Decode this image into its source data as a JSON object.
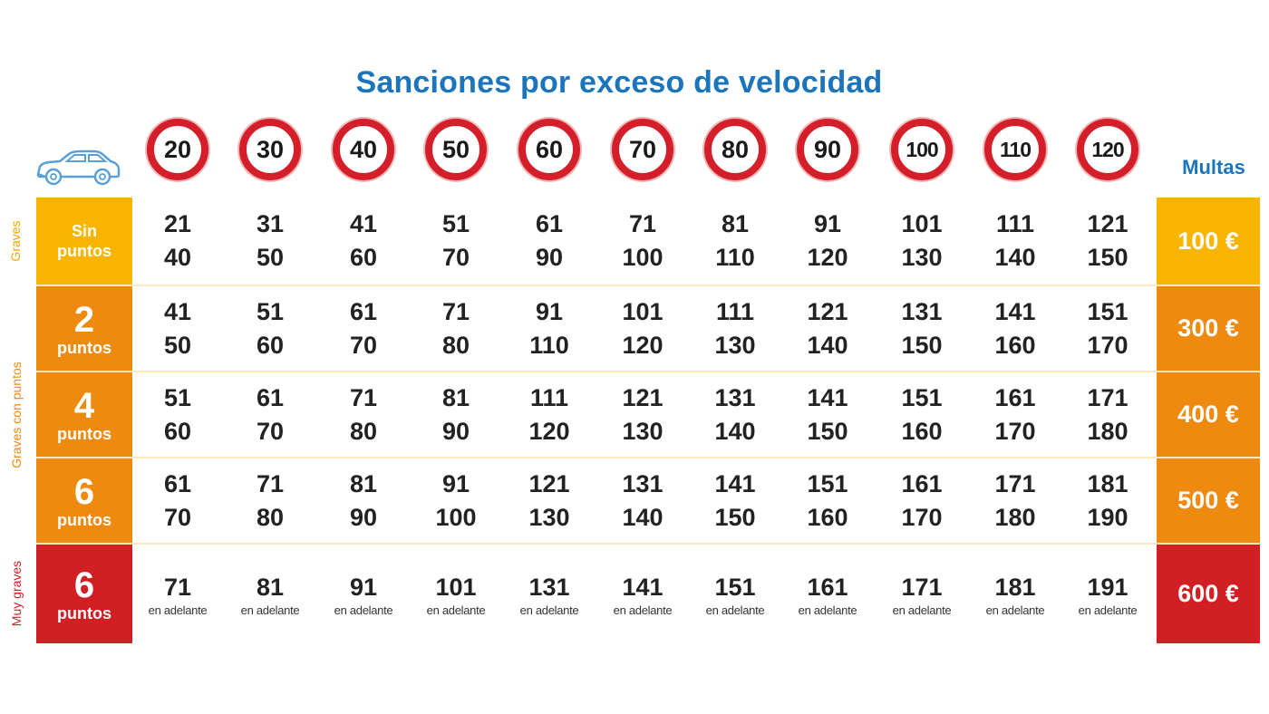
{
  "title": "Sanciones por exceso de velocidad",
  "header_icon": "car-icon",
  "speed_limits": [
    "20",
    "30",
    "40",
    "50",
    "60",
    "70",
    "80",
    "90",
    "100",
    "110",
    "120"
  ],
  "multas_label": "Multas",
  "categories": {
    "graves": "Graves",
    "graves_con_puntos": "Graves con puntos",
    "muy_graves": "Muy graves"
  },
  "colors": {
    "title_blue": "#1a75bc",
    "sign_red": "#d41f2a",
    "yellow": "#f7b400",
    "orange": "#ef8a10",
    "red": "#d21f24"
  },
  "rows": [
    {
      "label_top": "Sin",
      "label_bottom": "puntos",
      "fine": "100 €",
      "ranges": [
        [
          "21",
          "40"
        ],
        [
          "31",
          "50"
        ],
        [
          "41",
          "60"
        ],
        [
          "51",
          "70"
        ],
        [
          "61",
          "90"
        ],
        [
          "71",
          "100"
        ],
        [
          "81",
          "110"
        ],
        [
          "91",
          "120"
        ],
        [
          "101",
          "130"
        ],
        [
          "111",
          "140"
        ],
        [
          "121",
          "150"
        ]
      ]
    },
    {
      "label_top": "2",
      "label_bottom": "puntos",
      "fine": "300 €",
      "ranges": [
        [
          "41",
          "50"
        ],
        [
          "51",
          "60"
        ],
        [
          "61",
          "70"
        ],
        [
          "71",
          "80"
        ],
        [
          "91",
          "110"
        ],
        [
          "101",
          "120"
        ],
        [
          "111",
          "130"
        ],
        [
          "121",
          "140"
        ],
        [
          "131",
          "150"
        ],
        [
          "141",
          "160"
        ],
        [
          "151",
          "170"
        ]
      ]
    },
    {
      "label_top": "4",
      "label_bottom": "puntos",
      "fine": "400 €",
      "ranges": [
        [
          "51",
          "60"
        ],
        [
          "61",
          "70"
        ],
        [
          "71",
          "80"
        ],
        [
          "81",
          "90"
        ],
        [
          "111",
          "120"
        ],
        [
          "121",
          "130"
        ],
        [
          "131",
          "140"
        ],
        [
          "141",
          "150"
        ],
        [
          "151",
          "160"
        ],
        [
          "161",
          "170"
        ],
        [
          "171",
          "180"
        ]
      ]
    },
    {
      "label_top": "6",
      "label_bottom": "puntos",
      "fine": "500 €",
      "ranges": [
        [
          "61",
          "70"
        ],
        [
          "71",
          "80"
        ],
        [
          "81",
          "90"
        ],
        [
          "91",
          "100"
        ],
        [
          "121",
          "130"
        ],
        [
          "131",
          "140"
        ],
        [
          "141",
          "150"
        ],
        [
          "151",
          "160"
        ],
        [
          "161",
          "170"
        ],
        [
          "171",
          "180"
        ],
        [
          "181",
          "190"
        ]
      ]
    },
    {
      "label_top": "6",
      "label_bottom": "puntos",
      "fine": "600 €",
      "ranges": [
        [
          "71",
          "en adelante"
        ],
        [
          "81",
          "en adelante"
        ],
        [
          "91",
          "en adelante"
        ],
        [
          "101",
          "en adelante"
        ],
        [
          "131",
          "en adelante"
        ],
        [
          "141",
          "en adelante"
        ],
        [
          "151",
          "en adelante"
        ],
        [
          "161",
          "en adelante"
        ],
        [
          "171",
          "en adelante"
        ],
        [
          "181",
          "en adelante"
        ],
        [
          "191",
          "en adelante"
        ]
      ]
    }
  ]
}
